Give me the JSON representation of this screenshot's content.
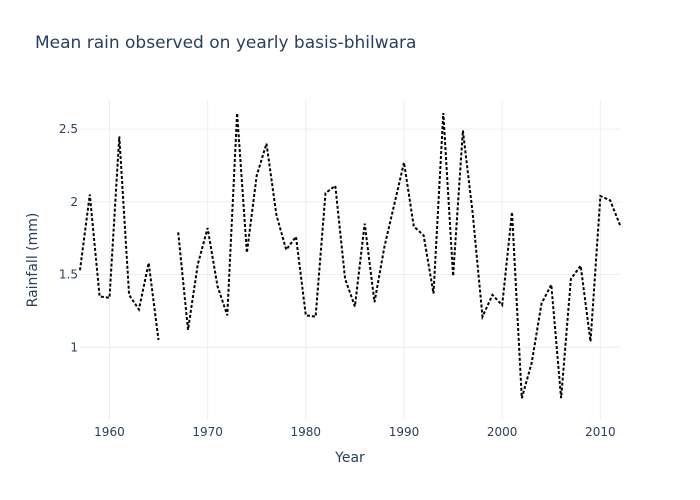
{
  "chart_data": {
    "type": "line",
    "title": "Mean rain observed on yearly basis-bhilwara",
    "xlabel": "Year",
    "ylabel": "Rainfall (mm)",
    "xlim": [
      1957,
      2012
    ],
    "ylim": [
      0.5,
      2.7
    ],
    "xticks": [
      1960,
      1970,
      1980,
      1990,
      2000,
      2010
    ],
    "yticks": [
      1,
      1.5,
      2,
      2.5
    ],
    "grid": true,
    "legend": "none",
    "line_color": "#000000",
    "line_style": "dotted",
    "segments": [
      {
        "x": [
          1957,
          1958,
          1959,
          1960,
          1961,
          1962,
          1963,
          1964,
          1965
        ],
        "y": [
          1.53,
          2.05,
          1.35,
          1.34,
          2.45,
          1.36,
          1.26,
          1.58,
          1.05
        ]
      },
      {
        "x": [
          1967,
          1968,
          1969,
          1970,
          1971,
          1972,
          1973,
          1974,
          1975,
          1976,
          1977,
          1978,
          1979,
          1980,
          1981,
          1982,
          1983,
          1984,
          1985,
          1986,
          1987,
          1988,
          1989,
          1990,
          1991,
          1992,
          1993,
          1994,
          1995,
          1996,
          1997,
          1998,
          1999,
          2000,
          2001,
          2002,
          2003,
          2004,
          2005,
          2006,
          2007,
          2008,
          2009,
          2010,
          2011,
          2012
        ],
        "y": [
          1.79,
          1.12,
          1.57,
          1.82,
          1.42,
          1.22,
          2.61,
          1.65,
          2.18,
          2.4,
          1.91,
          1.67,
          1.76,
          1.22,
          1.21,
          2.06,
          2.11,
          1.47,
          1.28,
          1.85,
          1.31,
          1.69,
          1.98,
          2.27,
          1.83,
          1.77,
          1.37,
          2.61,
          1.49,
          2.49,
          1.92,
          1.21,
          1.36,
          1.29,
          1.93,
          0.65,
          0.89,
          1.3,
          1.43,
          0.65,
          1.47,
          1.56,
          1.04,
          2.04,
          2.01,
          1.84
        ]
      }
    ]
  }
}
